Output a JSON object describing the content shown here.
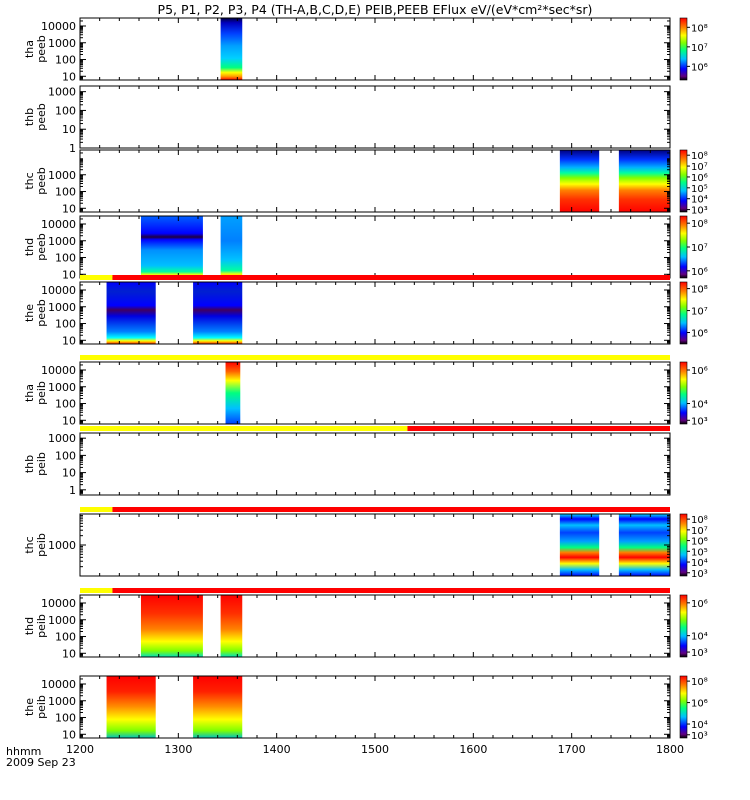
{
  "figure": {
    "title": "P5, P1, P2, P3, P4 (TH-A,B,C,D,E) PEIB,PEEB EFlux eV/(eV*cm²*sec*sr)",
    "time_label": "hhmm",
    "date_label": "2009 Sep 23"
  },
  "chart_data": {
    "type": "heatmap",
    "x_axis": {
      "ticks": [
        1200,
        1300,
        1400,
        1500,
        1600,
        1700,
        1800
      ],
      "range": [
        1200,
        1800
      ],
      "scale": "time hhmm"
    },
    "panels": [
      {
        "id": "tha-peeb",
        "label": [
          "tha",
          "peeb"
        ],
        "y_scale": "log",
        "y_range": [
          6,
          30000
        ],
        "y_ticks": [
          "10000",
          "1000",
          "100",
          "10"
        ],
        "colorbar": {
          "ticks": [
            "10⁸",
            "10⁷",
            "10⁶"
          ],
          "range": [
            200000,
            300000000
          ]
        },
        "data_blocks": [
          {
            "start": 1343,
            "end": 1365,
            "profile": "ee"
          }
        ],
        "status_bar": null
      },
      {
        "id": "thb-peeb",
        "label": [
          "thb",
          "peeb"
        ],
        "y_scale": "log",
        "y_range": [
          1,
          2000
        ],
        "y_ticks": [
          "1000",
          "100",
          "10",
          "1"
        ],
        "colorbar": null,
        "data_blocks": [],
        "status_bar": null
      },
      {
        "id": "thc-peeb",
        "label": [
          "thc",
          "peeb"
        ],
        "y_scale": "log",
        "y_range": [
          6,
          30000
        ],
        "y_ticks": [
          "1000",
          "100",
          "10"
        ],
        "colorbar": {
          "ticks": [
            "10⁸",
            "10⁷",
            "10⁶",
            "10⁵",
            "10⁴",
            "10³"
          ],
          "range": [
            600,
            300000000
          ]
        },
        "data_blocks": [
          {
            "start": 1688,
            "end": 1728,
            "profile": "ec"
          },
          {
            "start": 1748,
            "end": 1800,
            "profile": "ec"
          }
        ],
        "status_bar": null
      },
      {
        "id": "thd-peeb",
        "label": [
          "thd",
          "peeb"
        ],
        "y_scale": "log",
        "y_range": [
          6,
          30000
        ],
        "y_ticks": [
          "10000",
          "1000",
          "100",
          "10"
        ],
        "colorbar": {
          "ticks": [
            "10⁸",
            "10⁷",
            "10⁶"
          ],
          "range": [
            500000,
            200000000
          ]
        },
        "data_blocks": [
          {
            "start": 1262,
            "end": 1325,
            "profile": "ed"
          },
          {
            "start": 1343,
            "end": 1365,
            "profile": "ed2"
          }
        ],
        "status_bar": null
      },
      {
        "id": "the-peeb",
        "label": [
          "the",
          "peeb"
        ],
        "y_scale": "log",
        "y_range": [
          6,
          30000
        ],
        "y_ticks": [
          "10000",
          "1000",
          "100",
          "10"
        ],
        "colorbar": {
          "ticks": [
            "10⁸",
            "10⁷",
            "10⁶"
          ],
          "range": [
            300000,
            200000000
          ]
        },
        "data_blocks": [
          {
            "start": 1227,
            "end": 1277,
            "profile": "ee2"
          },
          {
            "start": 1315,
            "end": 1365,
            "profile": "ee2"
          }
        ],
        "status_bar": [
          {
            "from": 1200,
            "to": 1233,
            "color": "#ffff00"
          },
          {
            "from": 1233,
            "to": 1800,
            "color": "#ff0000"
          }
        ]
      },
      {
        "id": "tha-peib",
        "label": [
          "tha",
          "peib"
        ],
        "y_scale": "log",
        "y_range": [
          6,
          30000
        ],
        "y_ticks": [
          "10000",
          "1000",
          "100",
          "10"
        ],
        "colorbar": {
          "ticks": [
            "10⁶",
            "10⁴",
            "10³"
          ],
          "range": [
            600,
            3000000
          ]
        },
        "data_blocks": [
          {
            "start": 1348,
            "end": 1363,
            "profile": "ia"
          }
        ],
        "status_bar": [
          {
            "from": 1200,
            "to": 1800,
            "color": "#ffff00"
          }
        ]
      },
      {
        "id": "thb-peib",
        "label": [
          "thb",
          "peib"
        ],
        "y_scale": "log",
        "y_range": [
          0.5,
          2000
        ],
        "y_ticks": [
          "1000",
          "100",
          "10",
          "1"
        ],
        "colorbar": null,
        "data_blocks": [],
        "status_bar": [
          {
            "from": 1200,
            "to": 1533,
            "color": "#ffff00"
          },
          {
            "from": 1533,
            "to": 1800,
            "color": "#ff0000"
          }
        ]
      },
      {
        "id": "thc-peib",
        "label": [
          "thc",
          "peib"
        ],
        "y_scale": "log",
        "y_range": [
          100,
          10000
        ],
        "y_ticks": [
          "1000"
        ],
        "colorbar": {
          "ticks": [
            "10⁸",
            "10⁷",
            "10⁶",
            "10⁵",
            "10⁴",
            "10³"
          ],
          "range": [
            500,
            300000000
          ]
        },
        "data_blocks": [
          {
            "start": 1688,
            "end": 1728,
            "profile": "ic"
          },
          {
            "start": 1748,
            "end": 1800,
            "profile": "ic"
          }
        ],
        "status_bar": [
          {
            "from": 1200,
            "to": 1233,
            "color": "#ffff00"
          },
          {
            "from": 1233,
            "to": 1800,
            "color": "#ff0000"
          }
        ]
      },
      {
        "id": "thd-peib",
        "label": [
          "thd",
          "peib"
        ],
        "y_scale": "log",
        "y_range": [
          6,
          30000
        ],
        "y_ticks": [
          "10000",
          "1000",
          "100",
          "10"
        ],
        "colorbar": {
          "ticks": [
            "10⁶",
            "10⁴",
            "10³"
          ],
          "range": [
            500,
            3000000
          ]
        },
        "data_blocks": [
          {
            "start": 1262,
            "end": 1325,
            "profile": "id"
          },
          {
            "start": 1343,
            "end": 1365,
            "profile": "id"
          }
        ],
        "status_bar": [
          {
            "from": 1200,
            "to": 1233,
            "color": "#ffff00"
          },
          {
            "from": 1233,
            "to": 1800,
            "color": "#ff0000"
          }
        ]
      },
      {
        "id": "the-peib",
        "label": [
          "the",
          "peib"
        ],
        "y_scale": "log",
        "y_range": [
          6,
          30000
        ],
        "y_ticks": [
          "10000",
          "1000",
          "100",
          "10"
        ],
        "colorbar": {
          "ticks": [
            "10⁸",
            "10⁶",
            "10⁴",
            "10³"
          ],
          "range": [
            500,
            300000000
          ]
        },
        "data_blocks": [
          {
            "start": 1227,
            "end": 1277,
            "profile": "ie"
          },
          {
            "start": 1315,
            "end": 1365,
            "profile": "ie"
          }
        ],
        "status_bar": null
      }
    ]
  }
}
